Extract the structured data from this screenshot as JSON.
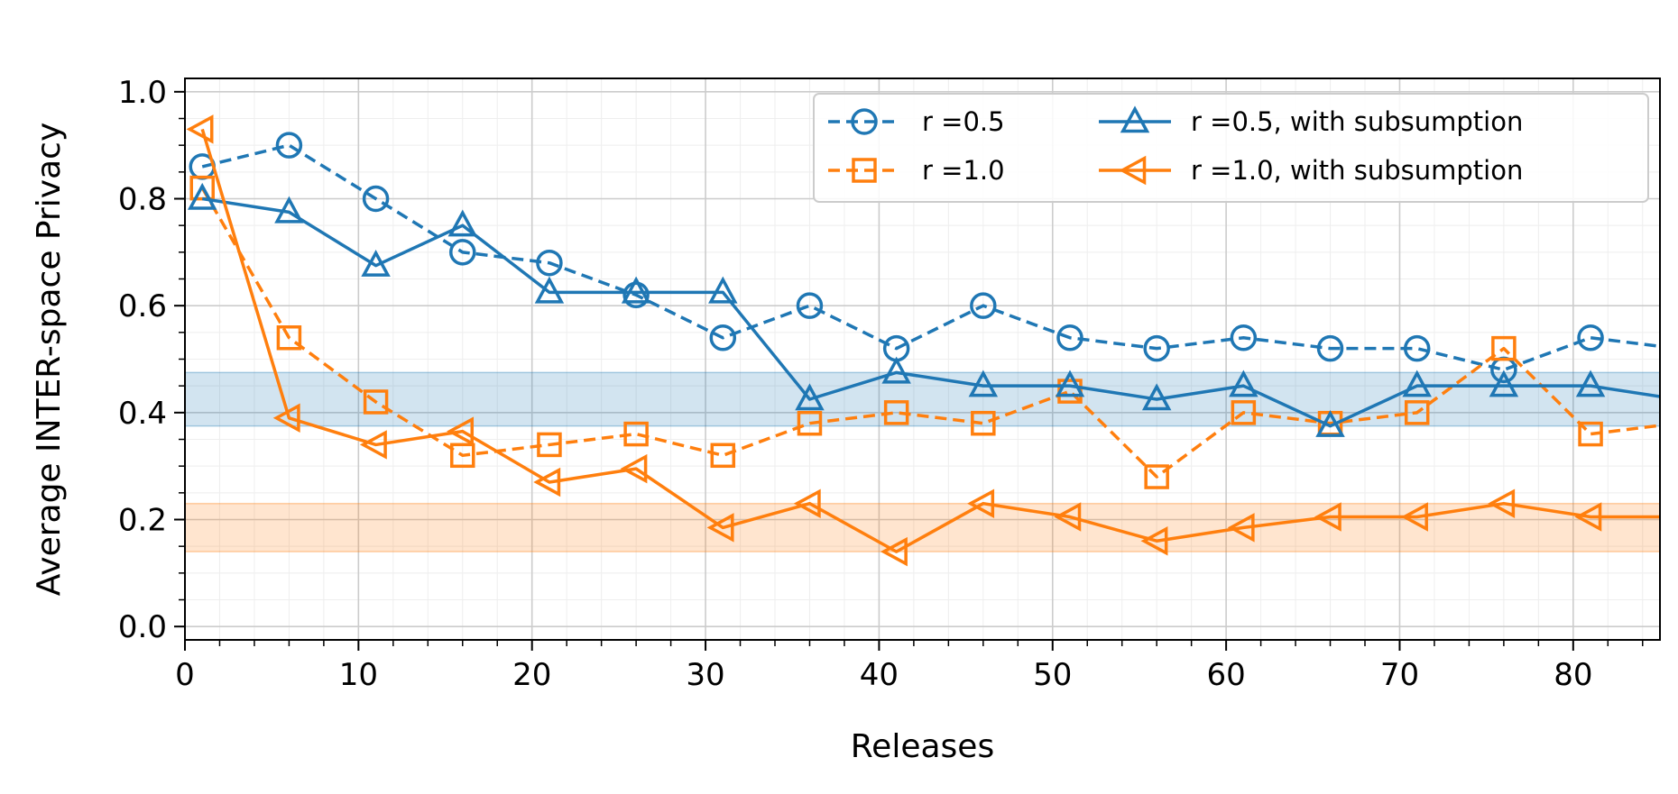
{
  "chart_data": {
    "type": "line",
    "title": "",
    "xlabel": "Releases",
    "ylabel": "Average INTER-space Privacy",
    "xlim": [
      0,
      85
    ],
    "ylim": [
      -0.025,
      1.025
    ],
    "xticks": [
      0,
      10,
      20,
      30,
      40,
      50,
      60,
      70,
      80
    ],
    "xtick_labels": [
      "0",
      "10",
      "20",
      "30",
      "40",
      "50",
      "60",
      "70",
      "80"
    ],
    "yticks": [
      0.0,
      0.2,
      0.4,
      0.6,
      0.8,
      1.0
    ],
    "ytick_labels": [
      "0.0",
      "0.2",
      "0.4",
      "0.6",
      "0.8",
      "1.0"
    ],
    "grid": true,
    "minor_grid": true,
    "legend_position": "top-right",
    "bands": [
      {
        "y_range": [
          0.375,
          0.475
        ],
        "color": "#1f77b4",
        "opacity": 0.2
      },
      {
        "y_range": [
          0.14,
          0.23
        ],
        "color": "#ff7f0e",
        "opacity": 0.2
      }
    ],
    "x": [
      1,
      6,
      11,
      16,
      21,
      26,
      31,
      36,
      41,
      46,
      51,
      56,
      61,
      66,
      71,
      76,
      81,
      86
    ],
    "series": [
      {
        "name": "r =0.5",
        "color": "#1f77b4",
        "linestyle": "dashed",
        "marker": "circle",
        "values": [
          0.86,
          0.9,
          0.8,
          0.7,
          0.68,
          0.62,
          0.54,
          0.6,
          0.52,
          0.6,
          0.54,
          0.52,
          0.54,
          0.52,
          0.52,
          0.48,
          0.54,
          0.52
        ]
      },
      {
        "name": "r =1.0",
        "color": "#ff7f0e",
        "linestyle": "dashed",
        "marker": "square",
        "values": [
          0.82,
          0.54,
          0.42,
          0.32,
          0.34,
          0.36,
          0.32,
          0.38,
          0.4,
          0.38,
          0.44,
          0.28,
          0.4,
          0.38,
          0.4,
          0.52,
          0.36,
          0.38
        ]
      },
      {
        "name": "r =0.5, with subsumption",
        "color": "#1f77b4",
        "linestyle": "solid",
        "marker": "triangle-up",
        "values": [
          0.8,
          0.775,
          0.675,
          0.75,
          0.625,
          0.625,
          0.625,
          0.425,
          0.475,
          0.45,
          0.45,
          0.425,
          0.45,
          0.375,
          0.45,
          0.45,
          0.45,
          0.425
        ]
      },
      {
        "name": "r =1.0, with subsumption",
        "color": "#ff7f0e",
        "linestyle": "solid",
        "marker": "triangle-left",
        "values": [
          0.93,
          0.39,
          0.34,
          0.365,
          0.27,
          0.295,
          0.185,
          0.23,
          0.14,
          0.23,
          0.205,
          0.16,
          0.185,
          0.205,
          0.205,
          0.23,
          0.205,
          0.205
        ]
      }
    ]
  }
}
